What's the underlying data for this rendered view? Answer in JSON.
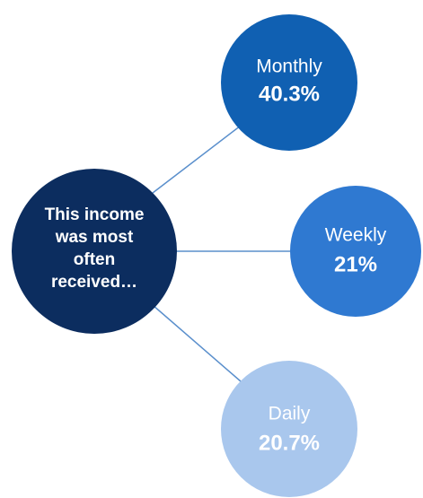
{
  "center": {
    "lines": [
      "This income",
      "was most",
      "often",
      "received…"
    ]
  },
  "nodes": [
    {
      "label": "Monthly",
      "value": "40.3%"
    },
    {
      "label": "Weekly",
      "value": "21%"
    },
    {
      "label": "Daily",
      "value": "20.7%"
    }
  ]
}
